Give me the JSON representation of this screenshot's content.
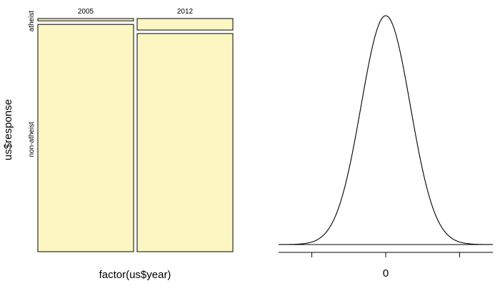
{
  "chart_data": [
    {
      "type": "mosaic",
      "xlabel": "factor(us$year)",
      "ylabel": "us$response",
      "categories": [
        "2005",
        "2012"
      ],
      "levels": [
        "atheist",
        "non-atheist"
      ],
      "column_widths": [
        0.5,
        0.5
      ],
      "proportions": [
        {
          "category": "2005",
          "atheist": 0.01,
          "non-atheist": 0.99
        },
        {
          "category": "2012",
          "atheist": 0.05,
          "non-atheist": 0.95
        }
      ],
      "fill_color": "#fbf6c2"
    },
    {
      "type": "line",
      "title": "",
      "xlabel": "",
      "ylabel": "",
      "x_ticks": [
        0
      ],
      "x_tick_labels": [
        "0"
      ],
      "xlim": [
        -4.35,
        4.35
      ],
      "mean": 0,
      "sd": 1,
      "points": [
        {
          "x": -4,
          "y": 0.0001
        },
        {
          "x": -3.5,
          "y": 0.0009
        },
        {
          "x": -3,
          "y": 0.0044
        },
        {
          "x": -2.5,
          "y": 0.0175
        },
        {
          "x": -2,
          "y": 0.054
        },
        {
          "x": -1.5,
          "y": 0.1295
        },
        {
          "x": -1,
          "y": 0.242
        },
        {
          "x": -0.5,
          "y": 0.3521
        },
        {
          "x": 0,
          "y": 0.3989
        },
        {
          "x": 0.5,
          "y": 0.3521
        },
        {
          "x": 1,
          "y": 0.242
        },
        {
          "x": 1.5,
          "y": 0.1295
        },
        {
          "x": 2,
          "y": 0.054
        },
        {
          "x": 2.5,
          "y": 0.0175
        },
        {
          "x": 3,
          "y": 0.0044
        },
        {
          "x": 3.5,
          "y": 0.0009
        },
        {
          "x": 4,
          "y": 0.0001
        }
      ]
    }
  ]
}
